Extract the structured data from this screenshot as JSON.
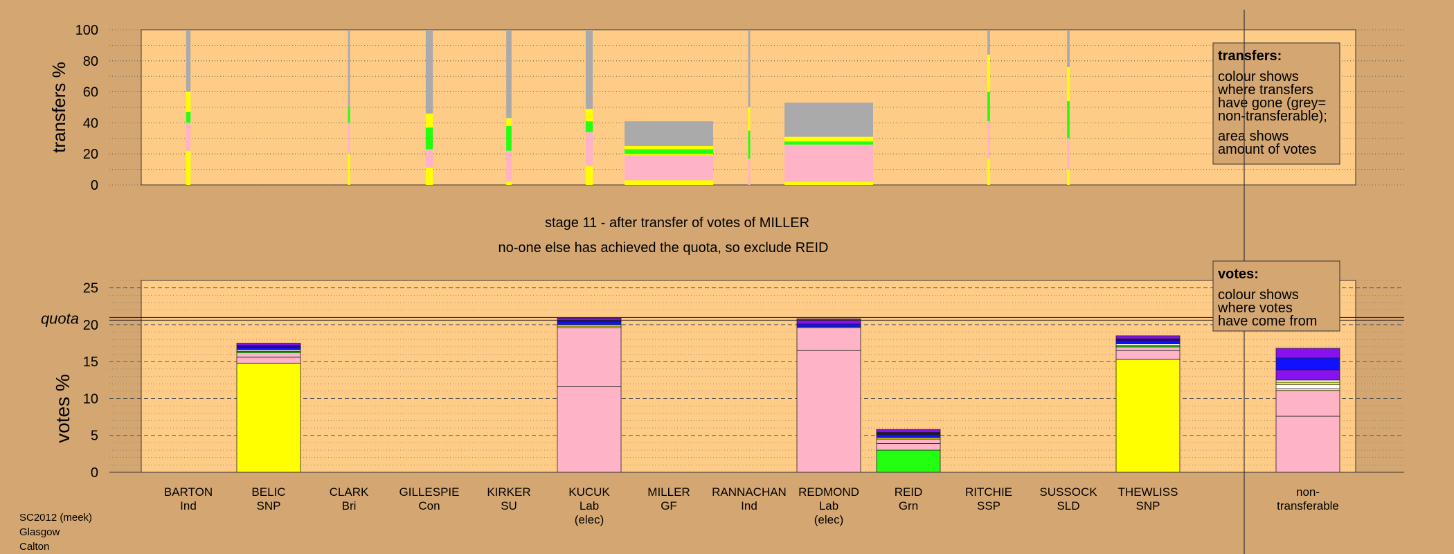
{
  "header": {
    "stage_line": "stage 11 - after transfer of votes of MILLER",
    "status_line": "no-one else has achieved the quota, so exclude REID"
  },
  "footer": {
    "lines": [
      "SC2012 (meek)",
      "Glasgow",
      "Calton"
    ]
  },
  "legends": {
    "transfers": {
      "title": "transfers:",
      "lines": [
        "colour shows",
        "where transfers",
        "have gone (grey=",
        "non-transferable);",
        "area shows",
        "amount of votes"
      ]
    },
    "votes": {
      "title": "votes:",
      "lines": [
        "colour shows",
        "where votes",
        "have come from"
      ]
    }
  },
  "colors": {
    "background": "#d4a772",
    "plot_bg": "#ffcc88",
    "SNP": "#ffff00",
    "Lab": "#ffb3c6",
    "Grn": "#22ff11",
    "Con": "#1111ff",
    "LD": "#ffffff",
    "Ind": "#8811ee",
    "other": "#22009a",
    "nontransferable": "#aaaaaa"
  },
  "chart_data": [
    {
      "type": "bar",
      "name": "transfers",
      "ylabel": "transfers %",
      "ylim": [
        0,
        100
      ],
      "yticks": [
        0,
        20,
        40,
        60,
        80,
        100
      ],
      "categories": [
        "BARTON",
        "BELIC",
        "CLARK",
        "GILLESPIE",
        "KIRKER",
        "KUCUK",
        "MILLER",
        "RANNACHAN",
        "REDMOND",
        "REID",
        "RITCHIE",
        "SUSSOCK",
        "THEWLISS",
        "non-transferable"
      ],
      "transfer_columns": [
        {
          "candidate": "BARTON",
          "width_share": 0.05,
          "segments": [
            {
              "party": "SNP",
              "from": 0,
              "to": 22
            },
            {
              "party": "Lab",
              "from": 22,
              "to": 40
            },
            {
              "party": "Grn",
              "from": 40,
              "to": 47
            },
            {
              "party": "SNP",
              "from": 47,
              "to": 60
            },
            {
              "party": "nontransferable",
              "from": 60,
              "to": 100
            }
          ]
        },
        {
          "candidate": "CLARK",
          "width_share": 0.01,
          "segments": [
            {
              "party": "SNP",
              "from": 0,
              "to": 20
            },
            {
              "party": "Lab",
              "from": 20,
              "to": 40
            },
            {
              "party": "Grn",
              "from": 40,
              "to": 50
            },
            {
              "party": "nontransferable",
              "from": 50,
              "to": 100
            }
          ]
        },
        {
          "candidate": "GILLESPIE",
          "width_share": 0.08,
          "segments": [
            {
              "party": "SNP",
              "from": 0,
              "to": 11
            },
            {
              "party": "Lab",
              "from": 11,
              "to": 23
            },
            {
              "party": "Grn",
              "from": 23,
              "to": 37
            },
            {
              "party": "SNP",
              "from": 37,
              "to": 46
            },
            {
              "party": "nontransferable",
              "from": 46,
              "to": 100
            }
          ]
        },
        {
          "candidate": "KIRKER",
          "width_share": 0.06,
          "segments": [
            {
              "party": "SNP",
              "from": 0,
              "to": 2
            },
            {
              "party": "Lab",
              "from": 2,
              "to": 22
            },
            {
              "party": "Grn",
              "from": 22,
              "to": 38
            },
            {
              "party": "SNP",
              "from": 38,
              "to": 43
            },
            {
              "party": "nontransferable",
              "from": 43,
              "to": 100
            }
          ]
        },
        {
          "candidate": "MILLER",
          "width_share": 1.0,
          "segments": [
            {
              "party": "SNP",
              "from": 0,
              "to": 3
            },
            {
              "party": "Lab",
              "from": 3,
              "to": 19
            },
            {
              "party": "SNP",
              "from": 19,
              "to": 20
            },
            {
              "party": "Grn",
              "from": 20,
              "to": 23
            },
            {
              "party": "SNP",
              "from": 23,
              "to": 25
            },
            {
              "party": "nontransferable",
              "from": 25,
              "to": 41
            }
          ]
        },
        {
          "candidate": "KUCUK",
          "width_share": 0.08,
          "segments": [
            {
              "party": "SNP",
              "from": 0,
              "to": 12
            },
            {
              "party": "Lab",
              "from": 12,
              "to": 34
            },
            {
              "party": "Grn",
              "from": 34,
              "to": 41
            },
            {
              "party": "SNP",
              "from": 41,
              "to": 49
            },
            {
              "party": "nontransferable",
              "from": 49,
              "to": 100
            }
          ]
        },
        {
          "candidate": "RANNACHAN",
          "width_share": 0.02,
          "segments": [
            {
              "party": "Lab",
              "from": 0,
              "to": 17
            },
            {
              "party": "Grn",
              "from": 17,
              "to": 35
            },
            {
              "party": "SNP",
              "from": 35,
              "to": 50
            },
            {
              "party": "nontransferable",
              "from": 50,
              "to": 100
            }
          ]
        },
        {
          "candidate": "MILLER",
          "width_share": 1.0,
          "slot": "REDMOND",
          "segments": [
            {
              "party": "SNP",
              "from": 0,
              "to": 2
            },
            {
              "party": "Lab",
              "from": 2,
              "to": 26
            },
            {
              "party": "Grn",
              "from": 26,
              "to": 28
            },
            {
              "party": "SNP",
              "from": 28,
              "to": 31
            },
            {
              "party": "nontransferable",
              "from": 31,
              "to": 53
            }
          ]
        },
        {
          "candidate": "RITCHIE",
          "width_share": 0.03,
          "segments": [
            {
              "party": "SNP",
              "from": 0,
              "to": 17
            },
            {
              "party": "Lab",
              "from": 17,
              "to": 41
            },
            {
              "party": "Grn",
              "from": 41,
              "to": 60
            },
            {
              "party": "SNP",
              "from": 60,
              "to": 84
            },
            {
              "party": "nontransferable",
              "from": 84,
              "to": 100
            }
          ]
        },
        {
          "candidate": "SUSSOCK",
          "width_share": 0.03,
          "segments": [
            {
              "party": "SNP",
              "from": 0,
              "to": 10
            },
            {
              "party": "Lab",
              "from": 10,
              "to": 30
            },
            {
              "party": "Grn",
              "from": 30,
              "to": 54
            },
            {
              "party": "SNP",
              "from": 54,
              "to": 76
            },
            {
              "party": "nontransferable",
              "from": 76,
              "to": 100
            }
          ]
        }
      ]
    },
    {
      "type": "bar",
      "name": "votes",
      "ylabel": "votes %",
      "ylim": [
        0,
        26
      ],
      "yticks": [
        0,
        5,
        10,
        15,
        20,
        25
      ],
      "quota_label": "quota",
      "quota": 20.8,
      "categories": [
        {
          "name": "BARTON",
          "sub": [
            "Ind"
          ]
        },
        {
          "name": "BELIC",
          "sub": [
            "SNP"
          ]
        },
        {
          "name": "CLARK",
          "sub": [
            "Bri"
          ]
        },
        {
          "name": "GILLESPIE",
          "sub": [
            "Con"
          ]
        },
        {
          "name": "KIRKER",
          "sub": [
            "SU"
          ]
        },
        {
          "name": "KUCUK",
          "sub": [
            "Lab",
            "(elec)"
          ]
        },
        {
          "name": "MILLER",
          "sub": [
            "GF"
          ]
        },
        {
          "name": "RANNACHAN",
          "sub": [
            "Ind"
          ]
        },
        {
          "name": "REDMOND",
          "sub": [
            "Lab",
            "(elec)"
          ]
        },
        {
          "name": "REID",
          "sub": [
            "Grn"
          ]
        },
        {
          "name": "RITCHIE",
          "sub": [
            "SSP"
          ]
        },
        {
          "name": "SUSSOCK",
          "sub": [
            "SLD"
          ]
        },
        {
          "name": "THEWLISS",
          "sub": [
            "SNP"
          ]
        },
        {
          "name": "non-",
          "sub": [
            "transferable"
          ]
        }
      ],
      "stacks": [
        {
          "candidate": "BELIC",
          "segments": [
            {
              "party": "SNP",
              "value": 14.8
            },
            {
              "party": "Lab",
              "value": 0.8
            },
            {
              "party": "Lab",
              "value": 0.6
            },
            {
              "party": "Grn",
              "value": 0.2
            },
            {
              "party": "LD",
              "value": 0.2
            },
            {
              "party": "Con",
              "value": 0.3
            },
            {
              "party": "other",
              "value": 0.3
            },
            {
              "party": "Ind",
              "value": 0.3
            }
          ]
        },
        {
          "candidate": "KUCUK",
          "segments": [
            {
              "party": "Lab",
              "value": 11.6
            },
            {
              "party": "Lab",
              "value": 8.0
            },
            {
              "party": "SNP",
              "value": 0.2
            },
            {
              "party": "LD",
              "value": 0.2
            },
            {
              "party": "Con",
              "value": 0.4
            },
            {
              "party": "other",
              "value": 0.2
            },
            {
              "party": "Ind",
              "value": 0.3
            }
          ]
        },
        {
          "candidate": "REDMOND",
          "segments": [
            {
              "party": "Lab",
              "value": 16.5
            },
            {
              "party": "Lab",
              "value": 3.1
            },
            {
              "party": "SNP",
              "value": 0.1
            },
            {
              "party": "Con",
              "value": 0.4
            },
            {
              "party": "Ind",
              "value": 0.7
            }
          ]
        },
        {
          "candidate": "REID",
          "segments": [
            {
              "party": "Grn",
              "value": 3.0
            },
            {
              "party": "Lab",
              "value": 0.9
            },
            {
              "party": "Lab",
              "value": 0.6
            },
            {
              "party": "SNP",
              "value": 0.2
            },
            {
              "party": "Con",
              "value": 0.4
            },
            {
              "party": "other",
              "value": 0.3
            },
            {
              "party": "Ind",
              "value": 0.4
            }
          ]
        },
        {
          "candidate": "THEWLISS",
          "segments": [
            {
              "party": "SNP",
              "value": 15.3
            },
            {
              "party": "Lab",
              "value": 1.2
            },
            {
              "party": "Lab",
              "value": 0.5
            },
            {
              "party": "Grn",
              "value": 0.2
            },
            {
              "party": "LD",
              "value": 0.2
            },
            {
              "party": "Con",
              "value": 0.4
            },
            {
              "party": "other",
              "value": 0.3
            },
            {
              "party": "Ind",
              "value": 0.4
            }
          ]
        },
        {
          "candidate": "non-transferable",
          "segments": [
            {
              "party": "Lab",
              "value": 7.6
            },
            {
              "party": "Lab",
              "value": 3.5
            },
            {
              "party": "SNP",
              "value": 0.2
            },
            {
              "party": "LD",
              "value": 0.6
            },
            {
              "party": "SNP",
              "value": 0.3
            },
            {
              "party": "LD",
              "value": 0.3
            },
            {
              "party": "Ind",
              "value": 1.4
            },
            {
              "party": "Con",
              "value": 1.6
            },
            {
              "party": "Ind",
              "value": 1.3
            }
          ]
        }
      ]
    }
  ]
}
